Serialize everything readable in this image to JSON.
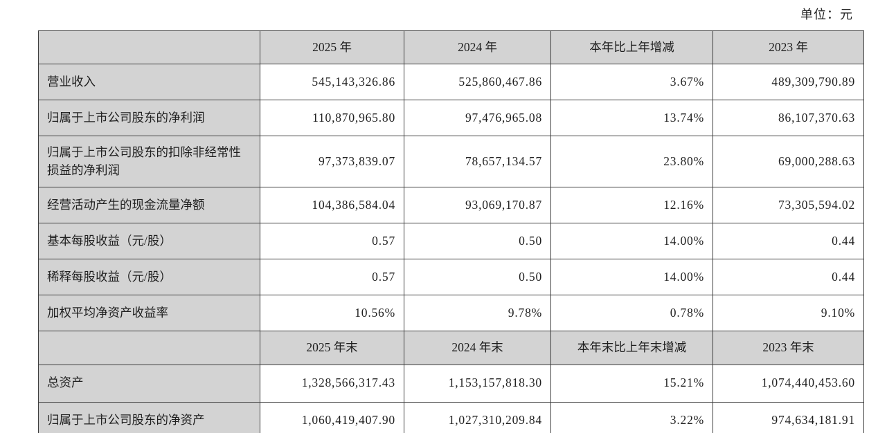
{
  "unit_label": "单位：元",
  "table": {
    "period_header": {
      "blank": "",
      "y2025": "2025 年",
      "y2024": "2024 年",
      "change": "本年比上年增减",
      "y2023": "2023 年"
    },
    "period_rows": [
      [
        "营业收入",
        "545,143,326.86",
        "525,860,467.86",
        "3.67%",
        "489,309,790.89"
      ],
      [
        "归属于上市公司股东的净利润",
        "110,870,965.80",
        "97,476,965.08",
        "13.74%",
        "86,107,370.63"
      ],
      [
        "归属于上市公司股东的扣除非经常性损益的净利润",
        "97,373,839.07",
        "78,657,134.57",
        "23.80%",
        "69,000,288.63"
      ],
      [
        "经营活动产生的现金流量净额",
        "104,386,584.04",
        "93,069,170.87",
        "12.16%",
        "73,305,594.02"
      ],
      [
        "基本每股收益（元/股）",
        "0.57",
        "0.50",
        "14.00%",
        "0.44"
      ],
      [
        "稀释每股收益（元/股）",
        "0.57",
        "0.50",
        "14.00%",
        "0.44"
      ],
      [
        "加权平均净资产收益率",
        "10.56%",
        "9.78%",
        "0.78%",
        "9.10%"
      ]
    ],
    "endpoint_header": {
      "blank": "",
      "y2025": "2025 年末",
      "y2024": "2024 年末",
      "change": "本年末比上年末增减",
      "y2023": "2023 年末"
    },
    "endpoint_rows": [
      [
        "总资产",
        "1,328,566,317.43",
        "1,153,157,818.30",
        "15.21%",
        "1,074,440,453.60"
      ],
      [
        "归属于上市公司股东的净资产",
        "1,060,419,407.90",
        "1,027,310,209.84",
        "3.22%",
        "974,634,181.91"
      ]
    ]
  }
}
